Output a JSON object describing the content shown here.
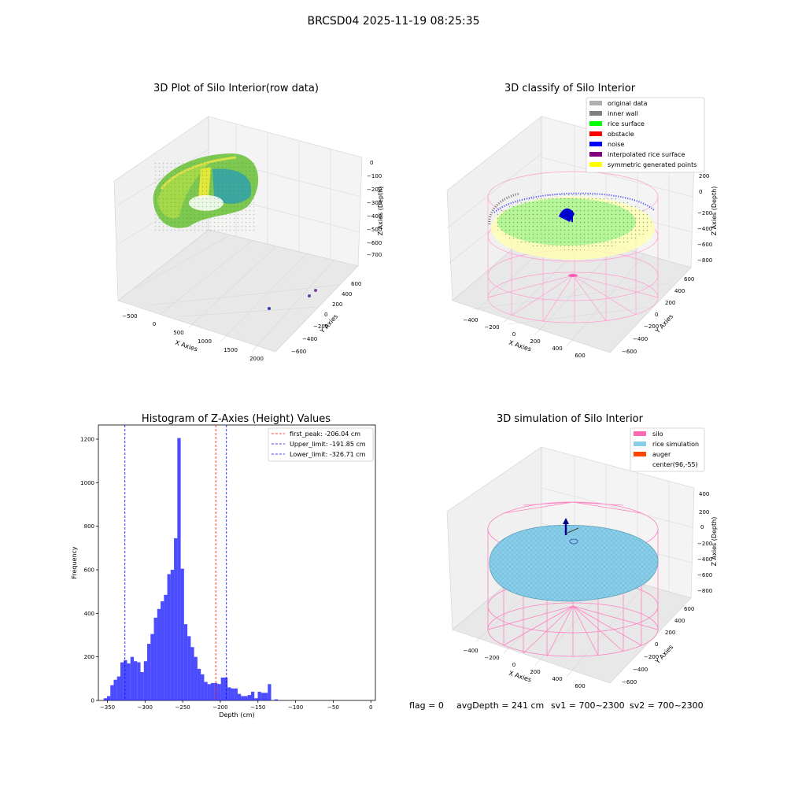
{
  "figure": {
    "suptitle": "BRCSD04 2025-11-19 08:25:35"
  },
  "panels": {
    "raw": {
      "title": "3D Plot of Silo Interior(row data)",
      "xlabel": "X Axies",
      "ylabel": "Y Axies",
      "zlabel": "Z Axies (Depth)",
      "x_ticks": [
        "−500",
        "0",
        "500",
        "1000",
        "1500",
        "2000"
      ],
      "y_ticks": [
        "−600",
        "−400",
        "−200",
        "0",
        "200",
        "400",
        "600"
      ],
      "z_ticks": [
        "0",
        "−100",
        "−200",
        "−300",
        "−400",
        "−500",
        "−600",
        "−700"
      ]
    },
    "classify": {
      "title": "3D classify of Silo Interior",
      "xlabel": "X Axies",
      "ylabel": "Y Axies",
      "zlabel": "Z Axies (Depth)",
      "x_ticks": [
        "−400",
        "−200",
        "0",
        "200",
        "400",
        "600"
      ],
      "y_ticks": [
        "−600",
        "−400",
        "−200",
        "0",
        "200",
        "400",
        "600"
      ],
      "z_ticks": [
        "200",
        "0",
        "−200",
        "−400",
        "−600",
        "−800"
      ],
      "legend": [
        {
          "label": "original data",
          "color": "#b0b0b0"
        },
        {
          "label": "inner wall",
          "color": "#808080"
        },
        {
          "label": "rice surface",
          "color": "#00ff00"
        },
        {
          "label": "obstacle",
          "color": "#ff0000"
        },
        {
          "label": "noise",
          "color": "#0000ff"
        },
        {
          "label": "interpolated rice surface",
          "color": "#800080"
        },
        {
          "label": "symmetric generated points",
          "color": "#ffff00"
        }
      ]
    },
    "simulation": {
      "title": "3D simulation of Silo Interior",
      "xlabel": "X Axies",
      "ylabel": "Y Axies",
      "zlabel": "Z Axies (Depth)",
      "x_ticks": [
        "−400",
        "−200",
        "0",
        "200",
        "400",
        "600"
      ],
      "y_ticks": [
        "−600",
        "−400",
        "−200",
        "0",
        "200",
        "400",
        "600"
      ],
      "z_ticks": [
        "400",
        "200",
        "0",
        "−200",
        "−400",
        "−600",
        "−800"
      ],
      "legend": [
        {
          "label": "silo",
          "color": "#ff69b4"
        },
        {
          "label": "rice simulation",
          "color": "#87ceeb"
        },
        {
          "label": "auger",
          "color": "#ff4500"
        },
        {
          "label": "center(96,-55)",
          "color": "#ffffff"
        }
      ]
    },
    "status": {
      "flag": "flag = 0",
      "avg_depth": "avgDepth = 241 cm",
      "sv1": "sv1 = 700~2300",
      "sv2": "sv2 = 700~2300"
    }
  },
  "chart_data": {
    "type": "bar",
    "title": "Histogram of Z-Axies (Height) Values",
    "xlabel": "Depth (cm)",
    "ylabel": "Frequency",
    "xlim": [
      -362,
      6
    ],
    "ylim": [
      0,
      1265
    ],
    "x_ticks": [
      -350,
      -300,
      -250,
      -200,
      -150,
      -100,
      -50,
      0
    ],
    "x_tick_labels": [
      "−350",
      "−300",
      "−250",
      "−200",
      "−150",
      "−100",
      "−50",
      "0"
    ],
    "y_ticks": [
      0,
      200,
      400,
      600,
      800,
      1000,
      1200
    ],
    "bin_width": 4.45,
    "bin_starts": [
      -355,
      -350.55,
      -346.1,
      -341.65,
      -337.2,
      -332.75,
      -328.3,
      -323.85,
      -319.4,
      -314.95,
      -310.5,
      -306.05,
      -301.6,
      -297.15,
      -292.7,
      -288.25,
      -283.8,
      -279.35,
      -274.9,
      -270.45,
      -266,
      -261.55,
      -257.1,
      -252.65,
      -248.2,
      -243.75,
      -239.3,
      -234.85,
      -230.4,
      -225.95,
      -221.5,
      -217.05,
      -212.6,
      -208.15,
      -203.7,
      -199.25,
      -194.8,
      -190.35,
      -185.9,
      -181.45,
      -177,
      -172.55,
      -168.1,
      -163.65,
      -159.2,
      -154.75,
      -150.3,
      -145.85,
      -141.4,
      -136.95,
      -132.5,
      -128.05,
      -123.6,
      -119.15,
      -114.7,
      -110.25,
      -105.8,
      -101.35,
      -96.9,
      -92.45,
      -88,
      -83.55,
      -79.1,
      -74.65,
      -70.2,
      -65.75,
      -61.3,
      -56.85,
      -52.4,
      -47.95,
      -43.5,
      -39.05,
      -34.6,
      -30.15,
      -25.7,
      -21.25,
      -16.8,
      -12.35,
      -7.9,
      -3.45
    ],
    "values": [
      10,
      20,
      70,
      95,
      110,
      175,
      185,
      170,
      200,
      180,
      175,
      130,
      180,
      260,
      305,
      380,
      420,
      455,
      485,
      580,
      600,
      745,
      1205,
      605,
      350,
      295,
      245,
      200,
      145,
      120,
      85,
      75,
      80,
      80,
      75,
      105,
      105,
      60,
      55,
      55,
      30,
      20,
      20,
      25,
      40,
      10,
      40,
      35,
      35,
      75,
      0,
      5,
      0,
      0,
      0,
      0,
      0,
      0,
      0,
      0,
      0,
      0,
      0,
      0,
      0,
      0,
      0,
      0,
      0,
      0,
      0,
      0,
      0,
      0,
      0,
      0,
      0,
      0,
      0,
      0
    ],
    "bar_color": "#0000ff",
    "vlines": [
      {
        "label": "first_peak: -206.04 cm",
        "x": -206.04,
        "color": "#ff0000"
      },
      {
        "label": "Upper_limit: -191.85 cm",
        "x": -191.85,
        "color": "#0000ff"
      },
      {
        "label": "Lower_limit: -326.71 cm",
        "x": -326.71,
        "color": "#0000ff"
      }
    ],
    "legend_position": "top-right"
  }
}
